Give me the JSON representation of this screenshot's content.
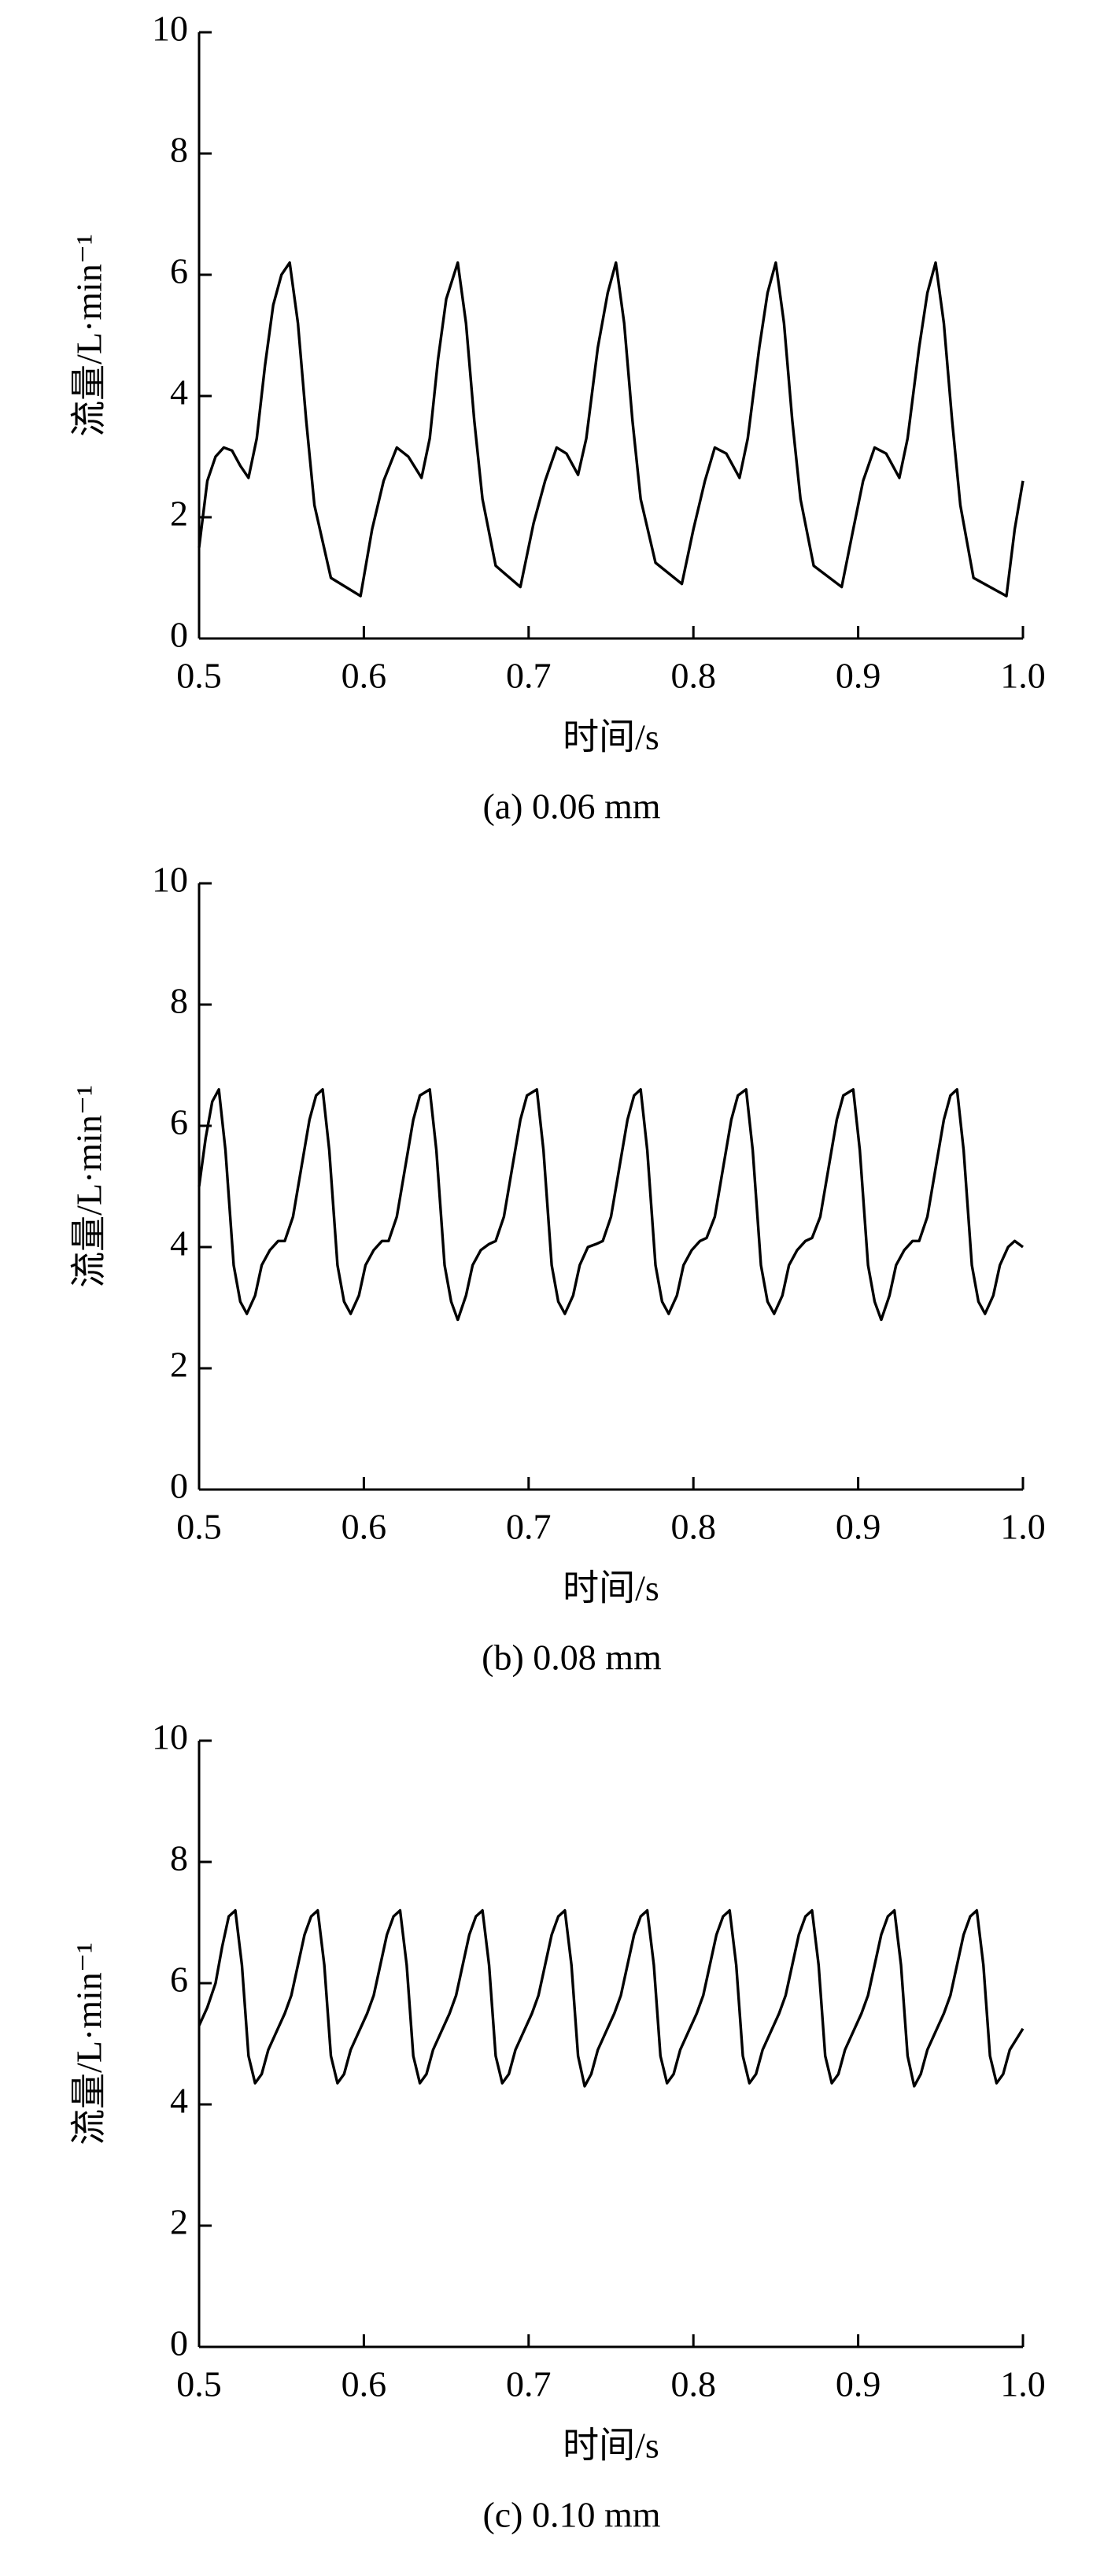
{
  "chart_data": [
    {
      "type": "line",
      "caption": "(a) 0.06 mm",
      "xlabel": "时间/s",
      "ylabel": "流量/L·min⁻¹",
      "color": "#000000",
      "xlim": [
        0.5,
        1
      ],
      "xticks": [
        0.5,
        0.6,
        0.7,
        0.8,
        0.9,
        {
          "value": 1,
          "label": "1.0"
        }
      ],
      "ylim": [
        0,
        10
      ],
      "yticks": [
        0,
        2,
        4,
        6,
        8,
        10
      ],
      "x": [
        0.5,
        0.505,
        0.51,
        0.515,
        0.52,
        0.525,
        0.53,
        0.535,
        0.54,
        0.545,
        0.55,
        0.555,
        0.56,
        0.565,
        0.57,
        0.58,
        0.598,
        0.605,
        0.612,
        0.62,
        0.627,
        0.635,
        0.64,
        0.645,
        0.65,
        0.657,
        0.662,
        0.667,
        0.672,
        0.68,
        0.695,
        0.703,
        0.71,
        0.717,
        0.723,
        0.73,
        0.735,
        0.742,
        0.748,
        0.753,
        0.758,
        0.763,
        0.768,
        0.777,
        0.793,
        0.8,
        0.807,
        0.813,
        0.82,
        0.828,
        0.833,
        0.84,
        0.845,
        0.85,
        0.855,
        0.86,
        0.865,
        0.873,
        0.89,
        0.897,
        0.903,
        0.91,
        0.917,
        0.925,
        0.93,
        0.937,
        0.942,
        0.947,
        0.952,
        0.957,
        0.962,
        0.97,
        0.99,
        0.995,
        1.0
      ],
      "values": [
        1.5,
        2.6,
        3.0,
        3.15,
        3.1,
        2.85,
        2.65,
        3.3,
        4.5,
        5.5,
        6.0,
        6.2,
        5.2,
        3.6,
        2.2,
        1.0,
        0.7,
        1.8,
        2.6,
        3.15,
        3.0,
        2.65,
        3.3,
        4.6,
        5.6,
        6.2,
        5.2,
        3.6,
        2.3,
        1.2,
        0.85,
        1.9,
        2.6,
        3.15,
        3.05,
        2.7,
        3.3,
        4.8,
        5.7,
        6.2,
        5.2,
        3.6,
        2.3,
        1.25,
        0.9,
        1.8,
        2.6,
        3.15,
        3.05,
        2.65,
        3.3,
        4.8,
        5.7,
        6.2,
        5.2,
        3.6,
        2.3,
        1.2,
        0.85,
        1.8,
        2.6,
        3.15,
        3.05,
        2.65,
        3.3,
        4.8,
        5.7,
        6.2,
        5.2,
        3.6,
        2.2,
        1.0,
        0.7,
        1.8,
        2.6
      ]
    },
    {
      "type": "line",
      "caption": "(b) 0.08 mm",
      "xlabel": "时间/s",
      "ylabel": "流量/L·min⁻¹",
      "color": "#000000",
      "xlim": [
        0.5,
        1
      ],
      "xticks": [
        0.5,
        0.6,
        0.7,
        0.8,
        0.9,
        {
          "value": 1,
          "label": "1.0"
        }
      ],
      "ylim": [
        0,
        10
      ],
      "yticks": [
        0,
        2,
        4,
        6,
        8,
        10
      ],
      "x": [
        0.5,
        0.504,
        0.508,
        0.512,
        0.516,
        0.521,
        0.525,
        0.529,
        0.534,
        0.538,
        0.543,
        0.548,
        0.552,
        0.557,
        0.562,
        0.567,
        0.571,
        0.575,
        0.579,
        0.584,
        0.588,
        0.592,
        0.597,
        0.601,
        0.606,
        0.611,
        0.615,
        0.62,
        0.625,
        0.63,
        0.634,
        0.64,
        0.644,
        0.649,
        0.653,
        0.657,
        0.662,
        0.666,
        0.671,
        0.676,
        0.68,
        0.685,
        0.69,
        0.695,
        0.699,
        0.705,
        0.709,
        0.714,
        0.718,
        0.722,
        0.727,
        0.731,
        0.736,
        0.741,
        0.745,
        0.75,
        0.755,
        0.76,
        0.764,
        0.768,
        0.772,
        0.777,
        0.781,
        0.785,
        0.79,
        0.794,
        0.799,
        0.804,
        0.808,
        0.813,
        0.818,
        0.823,
        0.827,
        0.832,
        0.836,
        0.841,
        0.845,
        0.849,
        0.854,
        0.858,
        0.863,
        0.868,
        0.872,
        0.877,
        0.882,
        0.887,
        0.891,
        0.897,
        0.901,
        0.906,
        0.91,
        0.914,
        0.919,
        0.923,
        0.928,
        0.933,
        0.937,
        0.942,
        0.947,
        0.952,
        0.956,
        0.96,
        0.964,
        0.969,
        0.973,
        0.977,
        0.982,
        0.986,
        0.991,
        0.995,
        1.0
      ],
      "values": [
        5.0,
        5.8,
        6.4,
        6.6,
        5.6,
        3.7,
        3.1,
        2.9,
        3.2,
        3.7,
        3.95,
        4.1,
        4.1,
        4.5,
        5.3,
        6.1,
        6.5,
        6.6,
        5.6,
        3.7,
        3.1,
        2.9,
        3.2,
        3.7,
        3.95,
        4.1,
        4.1,
        4.5,
        5.3,
        6.1,
        6.5,
        6.6,
        5.6,
        3.7,
        3.1,
        2.8,
        3.2,
        3.7,
        3.95,
        4.05,
        4.1,
        4.5,
        5.3,
        6.1,
        6.5,
        6.6,
        5.6,
        3.7,
        3.1,
        2.9,
        3.2,
        3.7,
        4.0,
        4.05,
        4.1,
        4.5,
        5.3,
        6.1,
        6.5,
        6.6,
        5.6,
        3.7,
        3.1,
        2.9,
        3.2,
        3.7,
        3.95,
        4.1,
        4.15,
        4.5,
        5.3,
        6.1,
        6.5,
        6.6,
        5.6,
        3.7,
        3.1,
        2.9,
        3.2,
        3.7,
        3.95,
        4.1,
        4.15,
        4.5,
        5.3,
        6.1,
        6.5,
        6.6,
        5.6,
        3.7,
        3.1,
        2.8,
        3.2,
        3.7,
        3.95,
        4.1,
        4.1,
        4.5,
        5.3,
        6.1,
        6.5,
        6.6,
        5.6,
        3.7,
        3.1,
        2.9,
        3.2,
        3.7,
        4.0,
        4.1,
        4.0
      ]
    },
    {
      "type": "line",
      "caption": "(c) 0.10 mm",
      "xlabel": "时间/s",
      "ylabel": "流量/L·min⁻¹",
      "color": "#000000",
      "xlim": [
        0.5,
        1
      ],
      "xticks": [
        0.5,
        0.6,
        0.7,
        0.8,
        0.9,
        {
          "value": 1,
          "label": "1.0"
        }
      ],
      "ylim": [
        0,
        10
      ],
      "yticks": [
        0,
        2,
        4,
        6,
        8,
        10
      ],
      "x": [
        0.5,
        0.505,
        0.51,
        0.514,
        0.518,
        0.522,
        0.526,
        0.53,
        0.534,
        0.538,
        0.542,
        0.547,
        0.552,
        0.556,
        0.56,
        0.564,
        0.568,
        0.572,
        0.576,
        0.58,
        0.584,
        0.588,
        0.592,
        0.597,
        0.602,
        0.606,
        0.61,
        0.614,
        0.618,
        0.622,
        0.626,
        0.63,
        0.634,
        0.638,
        0.642,
        0.647,
        0.652,
        0.656,
        0.66,
        0.664,
        0.668,
        0.672,
        0.676,
        0.68,
        0.684,
        0.688,
        0.692,
        0.697,
        0.702,
        0.706,
        0.71,
        0.714,
        0.718,
        0.722,
        0.726,
        0.73,
        0.734,
        0.738,
        0.742,
        0.747,
        0.752,
        0.756,
        0.76,
        0.764,
        0.768,
        0.772,
        0.776,
        0.78,
        0.784,
        0.788,
        0.792,
        0.797,
        0.802,
        0.806,
        0.81,
        0.814,
        0.818,
        0.822,
        0.826,
        0.83,
        0.834,
        0.838,
        0.842,
        0.847,
        0.852,
        0.856,
        0.86,
        0.864,
        0.868,
        0.872,
        0.876,
        0.88,
        0.884,
        0.888,
        0.892,
        0.897,
        0.902,
        0.906,
        0.91,
        0.914,
        0.918,
        0.922,
        0.926,
        0.93,
        0.934,
        0.938,
        0.942,
        0.947,
        0.952,
        0.956,
        0.96,
        0.964,
        0.968,
        0.972,
        0.976,
        0.98,
        0.984,
        0.988,
        0.992,
        1.0
      ],
      "values": [
        5.3,
        5.6,
        6.0,
        6.6,
        7.1,
        7.2,
        6.3,
        4.8,
        4.35,
        4.5,
        4.9,
        5.2,
        5.5,
        5.8,
        6.3,
        6.8,
        7.1,
        7.2,
        6.3,
        4.8,
        4.35,
        4.5,
        4.9,
        5.2,
        5.5,
        5.8,
        6.3,
        6.8,
        7.1,
        7.2,
        6.3,
        4.8,
        4.35,
        4.5,
        4.9,
        5.2,
        5.5,
        5.8,
        6.3,
        6.8,
        7.1,
        7.2,
        6.3,
        4.8,
        4.35,
        4.5,
        4.9,
        5.2,
        5.5,
        5.8,
        6.3,
        6.8,
        7.1,
        7.2,
        6.3,
        4.8,
        4.3,
        4.5,
        4.9,
        5.2,
        5.5,
        5.8,
        6.3,
        6.8,
        7.1,
        7.2,
        6.3,
        4.8,
        4.35,
        4.5,
        4.9,
        5.2,
        5.5,
        5.8,
        6.3,
        6.8,
        7.1,
        7.2,
        6.3,
        4.8,
        4.35,
        4.5,
        4.9,
        5.2,
        5.5,
        5.8,
        6.3,
        6.8,
        7.1,
        7.2,
        6.3,
        4.8,
        4.35,
        4.5,
        4.9,
        5.2,
        5.5,
        5.8,
        6.3,
        6.8,
        7.1,
        7.2,
        6.3,
        4.8,
        4.3,
        4.5,
        4.9,
        5.2,
        5.5,
        5.8,
        6.3,
        6.8,
        7.1,
        7.2,
        6.3,
        4.8,
        4.35,
        4.5,
        4.9,
        5.25
      ]
    }
  ]
}
